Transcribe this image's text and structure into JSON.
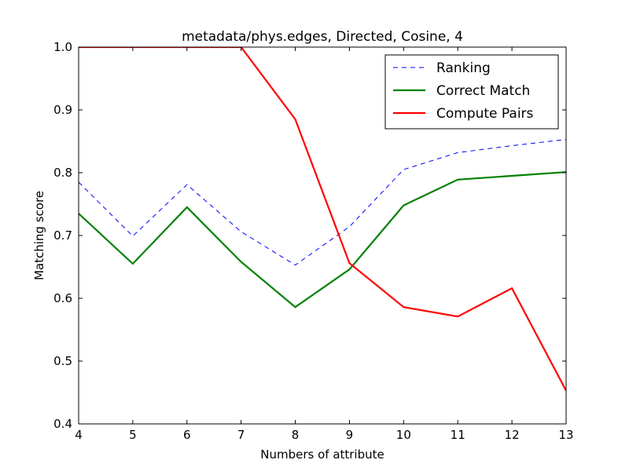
{
  "chart_data": {
    "type": "line",
    "title": "metadata/phys.edges, Directed, Cosine, 4",
    "xlabel": "Numbers of attribute",
    "ylabel": "Matching score",
    "x": [
      4,
      5,
      6,
      7,
      8,
      9,
      10,
      11,
      12,
      13
    ],
    "xlim": [
      4,
      13
    ],
    "ylim": [
      0.4,
      1.0
    ],
    "xticks": [
      "4",
      "5",
      "6",
      "7",
      "8",
      "9",
      "10",
      "11",
      "12",
      "13"
    ],
    "yticks": [
      "0.4",
      "0.5",
      "0.6",
      "0.7",
      "0.8",
      "0.9",
      "1.0"
    ],
    "grid": false,
    "legend_position": "top-right",
    "series": [
      {
        "name": "Ranking",
        "color": "#0000ff",
        "style": "dashed",
        "values": [
          0.785,
          0.699,
          0.781,
          0.706,
          0.653,
          0.714,
          0.805,
          0.832,
          0.843,
          0.853
        ]
      },
      {
        "name": "Correct Match",
        "color": "#008000",
        "style": "solid",
        "values": [
          0.735,
          0.655,
          0.745,
          0.658,
          0.586,
          0.646,
          0.748,
          0.789,
          0.795,
          0.801
        ]
      },
      {
        "name": "Compute Pairs",
        "color": "#ff0000",
        "style": "solid",
        "values": [
          1.0,
          1.0,
          1.0,
          1.0,
          0.885,
          0.656,
          0.586,
          0.571,
          0.616,
          0.453
        ]
      }
    ]
  }
}
